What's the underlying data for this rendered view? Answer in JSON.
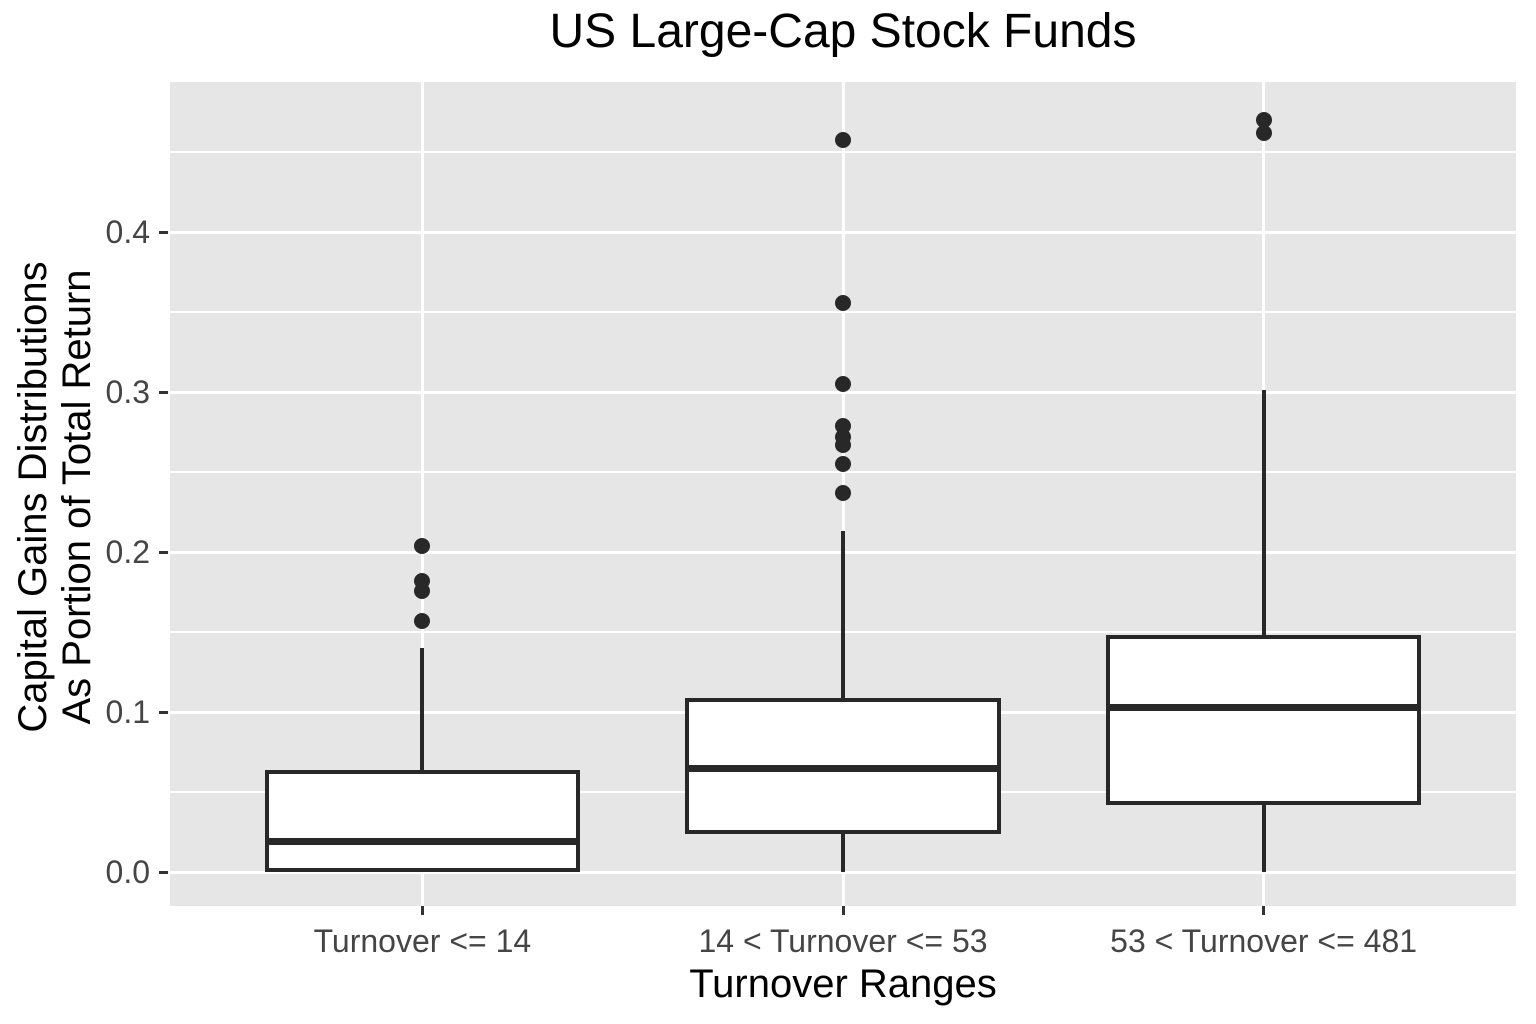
{
  "chart_data": {
    "type": "boxplot",
    "title": "US Large-Cap Stock Funds",
    "xlabel": "Turnover Ranges",
    "ylabel_lines": [
      "Capital Gains Distributions",
      "As Portion of Total Return"
    ],
    "categories": [
      "Turnover <= 14",
      "14 < Turnover <= 53",
      "53 < Turnover <= 481"
    ],
    "axes": {
      "y": {
        "range": [
          -0.02125,
          0.494
        ],
        "major_ticks": [
          0.0,
          0.1,
          0.2,
          0.3,
          0.4
        ],
        "major_tick_labels": [
          "0.0",
          "0.1",
          "0.2",
          "0.3",
          "0.4"
        ],
        "minor_ticks": [
          0.05,
          0.15,
          0.25,
          0.35,
          0.45
        ],
        "grid": true
      },
      "x": {
        "grid": true
      }
    },
    "boxes": [
      {
        "category": "Turnover <= 14",
        "whisker_low": 0.001,
        "q1": 0.001,
        "median": 0.019,
        "q3": 0.0625,
        "whisker_high": 0.139,
        "outliers": [
          0.157,
          0.176,
          0.182,
          0.204
        ]
      },
      {
        "category": "14 < Turnover <= 53",
        "whisker_low": 0.001,
        "q1": 0.025,
        "median": 0.065,
        "q3": 0.1075,
        "whisker_high": 0.212,
        "outliers": [
          0.237,
          0.255,
          0.267,
          0.272,
          0.279,
          0.305,
          0.356,
          0.458
        ]
      },
      {
        "category": "53 < Turnover <= 481",
        "whisker_low": 0.001,
        "q1": 0.043,
        "median": 0.103,
        "q3": 0.147,
        "whisker_high": 0.3,
        "outliers": [
          0.462,
          0.47
        ]
      }
    ],
    "colors": {
      "panel_bg": "#e6e6e6",
      "gridline": "#ffffff",
      "box_stroke": "#282828",
      "box_fill": "#ffffff",
      "outlier": "#282828",
      "tick_label": "#454545",
      "tick_mark": "#333333",
      "title": "#000000"
    },
    "legend": "none"
  }
}
